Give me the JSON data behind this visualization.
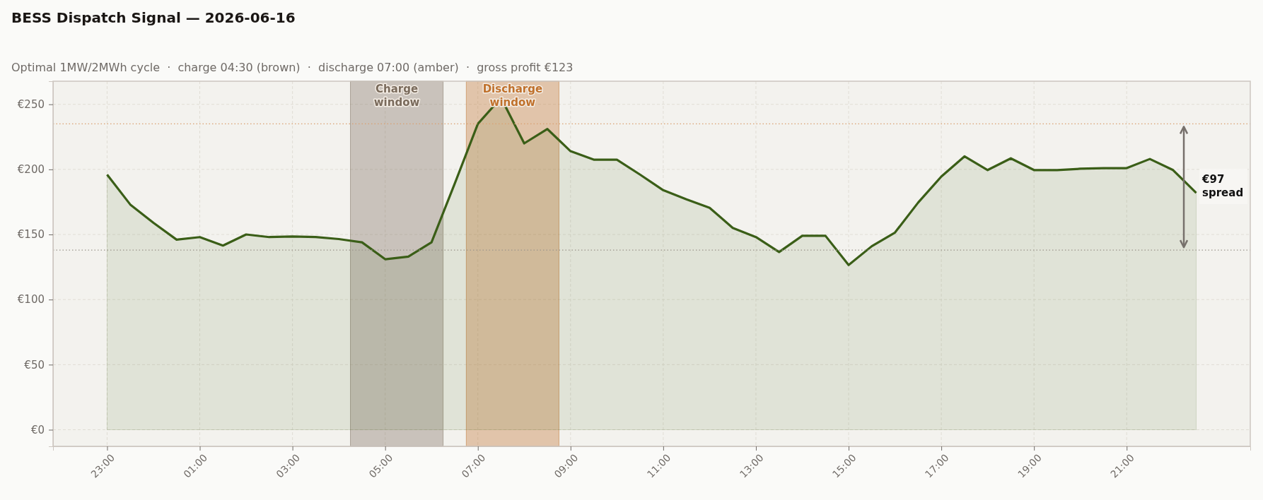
{
  "chart_data": {
    "type": "area",
    "title": "BESS Dispatch Signal — 2026-06-16",
    "subtitle": "Optimal 1MW/2MWh cycle  ·  charge 04:30 (brown)  ·  discharge 07:00 (amber)  ·  gross profit €123",
    "x": [
      "2026-06-15T23:00",
      "2026-06-15T23:30",
      "2026-06-16T00:00",
      "2026-06-16T00:30",
      "2026-06-16T01:00",
      "2026-06-16T01:30",
      "2026-06-16T02:00",
      "2026-06-16T02:30",
      "2026-06-16T03:00",
      "2026-06-16T03:30",
      "2026-06-16T04:00",
      "2026-06-16T04:30",
      "2026-06-16T05:00",
      "2026-06-16T05:30",
      "2026-06-16T06:00",
      "2026-06-16T06:30",
      "2026-06-16T07:00",
      "2026-06-16T07:30",
      "2026-06-16T08:00",
      "2026-06-16T08:30",
      "2026-06-16T09:00",
      "2026-06-16T09:30",
      "2026-06-16T10:00",
      "2026-06-16T10:30",
      "2026-06-16T11:00",
      "2026-06-16T11:30",
      "2026-06-16T12:00",
      "2026-06-16T12:30",
      "2026-06-16T13:00",
      "2026-06-16T13:30",
      "2026-06-16T14:00",
      "2026-06-16T14:30",
      "2026-06-16T15:00",
      "2026-06-16T15:30",
      "2026-06-16T16:00",
      "2026-06-16T16:30",
      "2026-06-16T17:00",
      "2026-06-16T17:30",
      "2026-06-16T18:00",
      "2026-06-16T18:30",
      "2026-06-16T19:00",
      "2026-06-16T19:30",
      "2026-06-16T20:00",
      "2026-06-16T20:30",
      "2026-06-16T21:00",
      "2026-06-16T21:30",
      "2026-06-16T22:00",
      "2026-06-16T22:30"
    ],
    "series": [
      {
        "color": "#3a5e17",
        "values": [
          196,
          173,
          159,
          146,
          148,
          141.5,
          150,
          148,
          148.5,
          148,
          146.5,
          144,
          131,
          133,
          144,
          189,
          235,
          255,
          220,
          231,
          214,
          207.5,
          207.5,
          196,
          184,
          177,
          170.5,
          155,
          148,
          136.5,
          149,
          149,
          126.5,
          141,
          151.5,
          174.5,
          194.5,
          210,
          199.5,
          208.5,
          199.5,
          199.5,
          200.5,
          201,
          201,
          208,
          199.5,
          182
        ]
      }
    ],
    "xlim": [
      "2026-06-15T21:50",
      "2026-06-16T23:40"
    ],
    "xticks": [
      {
        "value": "2026-06-15T23:00",
        "label": "23:00"
      },
      {
        "value": "2026-06-16T01:00",
        "label": "01:00"
      },
      {
        "value": "2026-06-16T03:00",
        "label": "03:00"
      },
      {
        "value": "2026-06-16T05:00",
        "label": "05:00"
      },
      {
        "value": "2026-06-16T07:00",
        "label": "07:00"
      },
      {
        "value": "2026-06-16T09:00",
        "label": "09:00"
      },
      {
        "value": "2026-06-16T11:00",
        "label": "11:00"
      },
      {
        "value": "2026-06-16T13:00",
        "label": "13:00"
      },
      {
        "value": "2026-06-16T15:00",
        "label": "15:00"
      },
      {
        "value": "2026-06-16T17:00",
        "label": "17:00"
      },
      {
        "value": "2026-06-16T19:00",
        "label": "19:00"
      },
      {
        "value": "2026-06-16T21:00",
        "label": "21:00"
      }
    ],
    "ylim": [
      -12.75,
      267.75
    ],
    "yticks": [
      {
        "value": 0,
        "label": "€0"
      },
      {
        "value": 50,
        "label": "€50"
      },
      {
        "value": 100,
        "label": "€100"
      },
      {
        "value": 150,
        "label": "€150"
      },
      {
        "value": 200,
        "label": "€200"
      },
      {
        "value": 250,
        "label": "€250"
      }
    ],
    "bands": [
      {
        "axis": "x",
        "from": "2026-06-16T04:15",
        "to": "2026-06-16T06:15",
        "label": "Charge\nwindow",
        "color": "#7a6b5c"
      },
      {
        "axis": "x",
        "from": "2026-06-16T06:45",
        "to": "2026-06-16T08:45",
        "label": "Discharge\nwindow",
        "color": "#c0712c"
      }
    ],
    "ref_lines": [
      {
        "axis": "y",
        "value": 235,
        "color": "#d9a070",
        "line_style": "dotted"
      },
      {
        "axis": "y",
        "value": 138,
        "color": "#9a948a",
        "line_style": "dotted"
      }
    ],
    "annotations": [
      "€97\nspread"
    ],
    "grid": true,
    "marker": "none",
    "line_style": "solid"
  }
}
